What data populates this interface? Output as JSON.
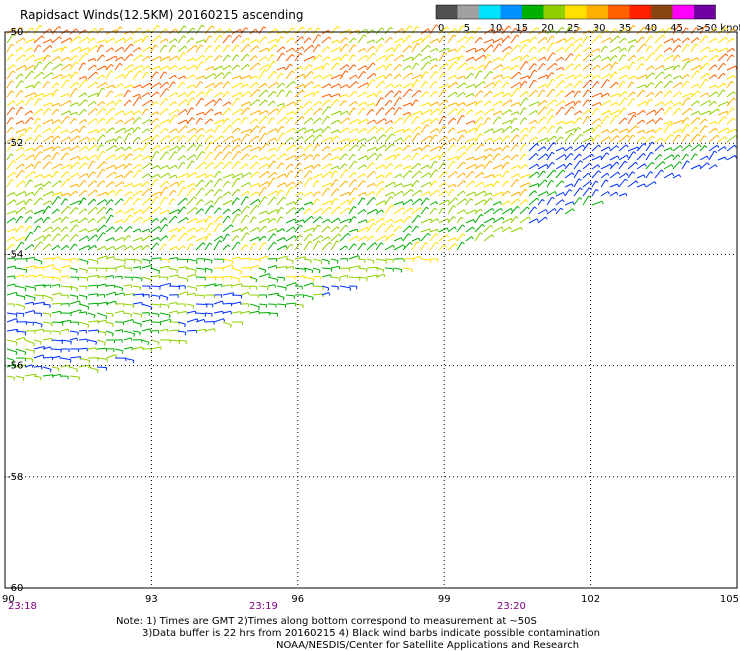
{
  "title": "Rapidsact Winds(12.5KM) 20160215 ascending",
  "colorbar": {
    "labels": [
      "0",
      "5",
      "10",
      "15",
      "20",
      "25",
      "30",
      "35",
      "40",
      "45",
      ">50 knots"
    ],
    "colors": [
      "#505050",
      "#a0a0a0",
      "#00e0ff",
      "#0090ff",
      "#00b000",
      "#90d000",
      "#ffe000",
      "#ffb000",
      "#ff6000",
      "#ff2000",
      "#8b4513",
      "#ff00ff",
      "#7000a0"
    ]
  },
  "map": {
    "lon_labels": [
      "90",
      "93",
      "96",
      "99",
      "102",
      "105"
    ],
    "lat_labels": [
      "-50",
      "-52",
      "-54",
      "-56",
      "-58",
      "-60"
    ],
    "time_labels": [
      "23:18",
      "23:19",
      "23:20"
    ]
  },
  "notes": {
    "line1": "Note: 1) Times are GMT 2)Times along bottom correspond to measurement at ~50S",
    "line2": "3)Data buffer is 22 hrs from 20160215 4) Black wind barbs indicate possible contamination",
    "line3": "NOAA/NESDIS/Center for Satellite Applications and Research"
  }
}
